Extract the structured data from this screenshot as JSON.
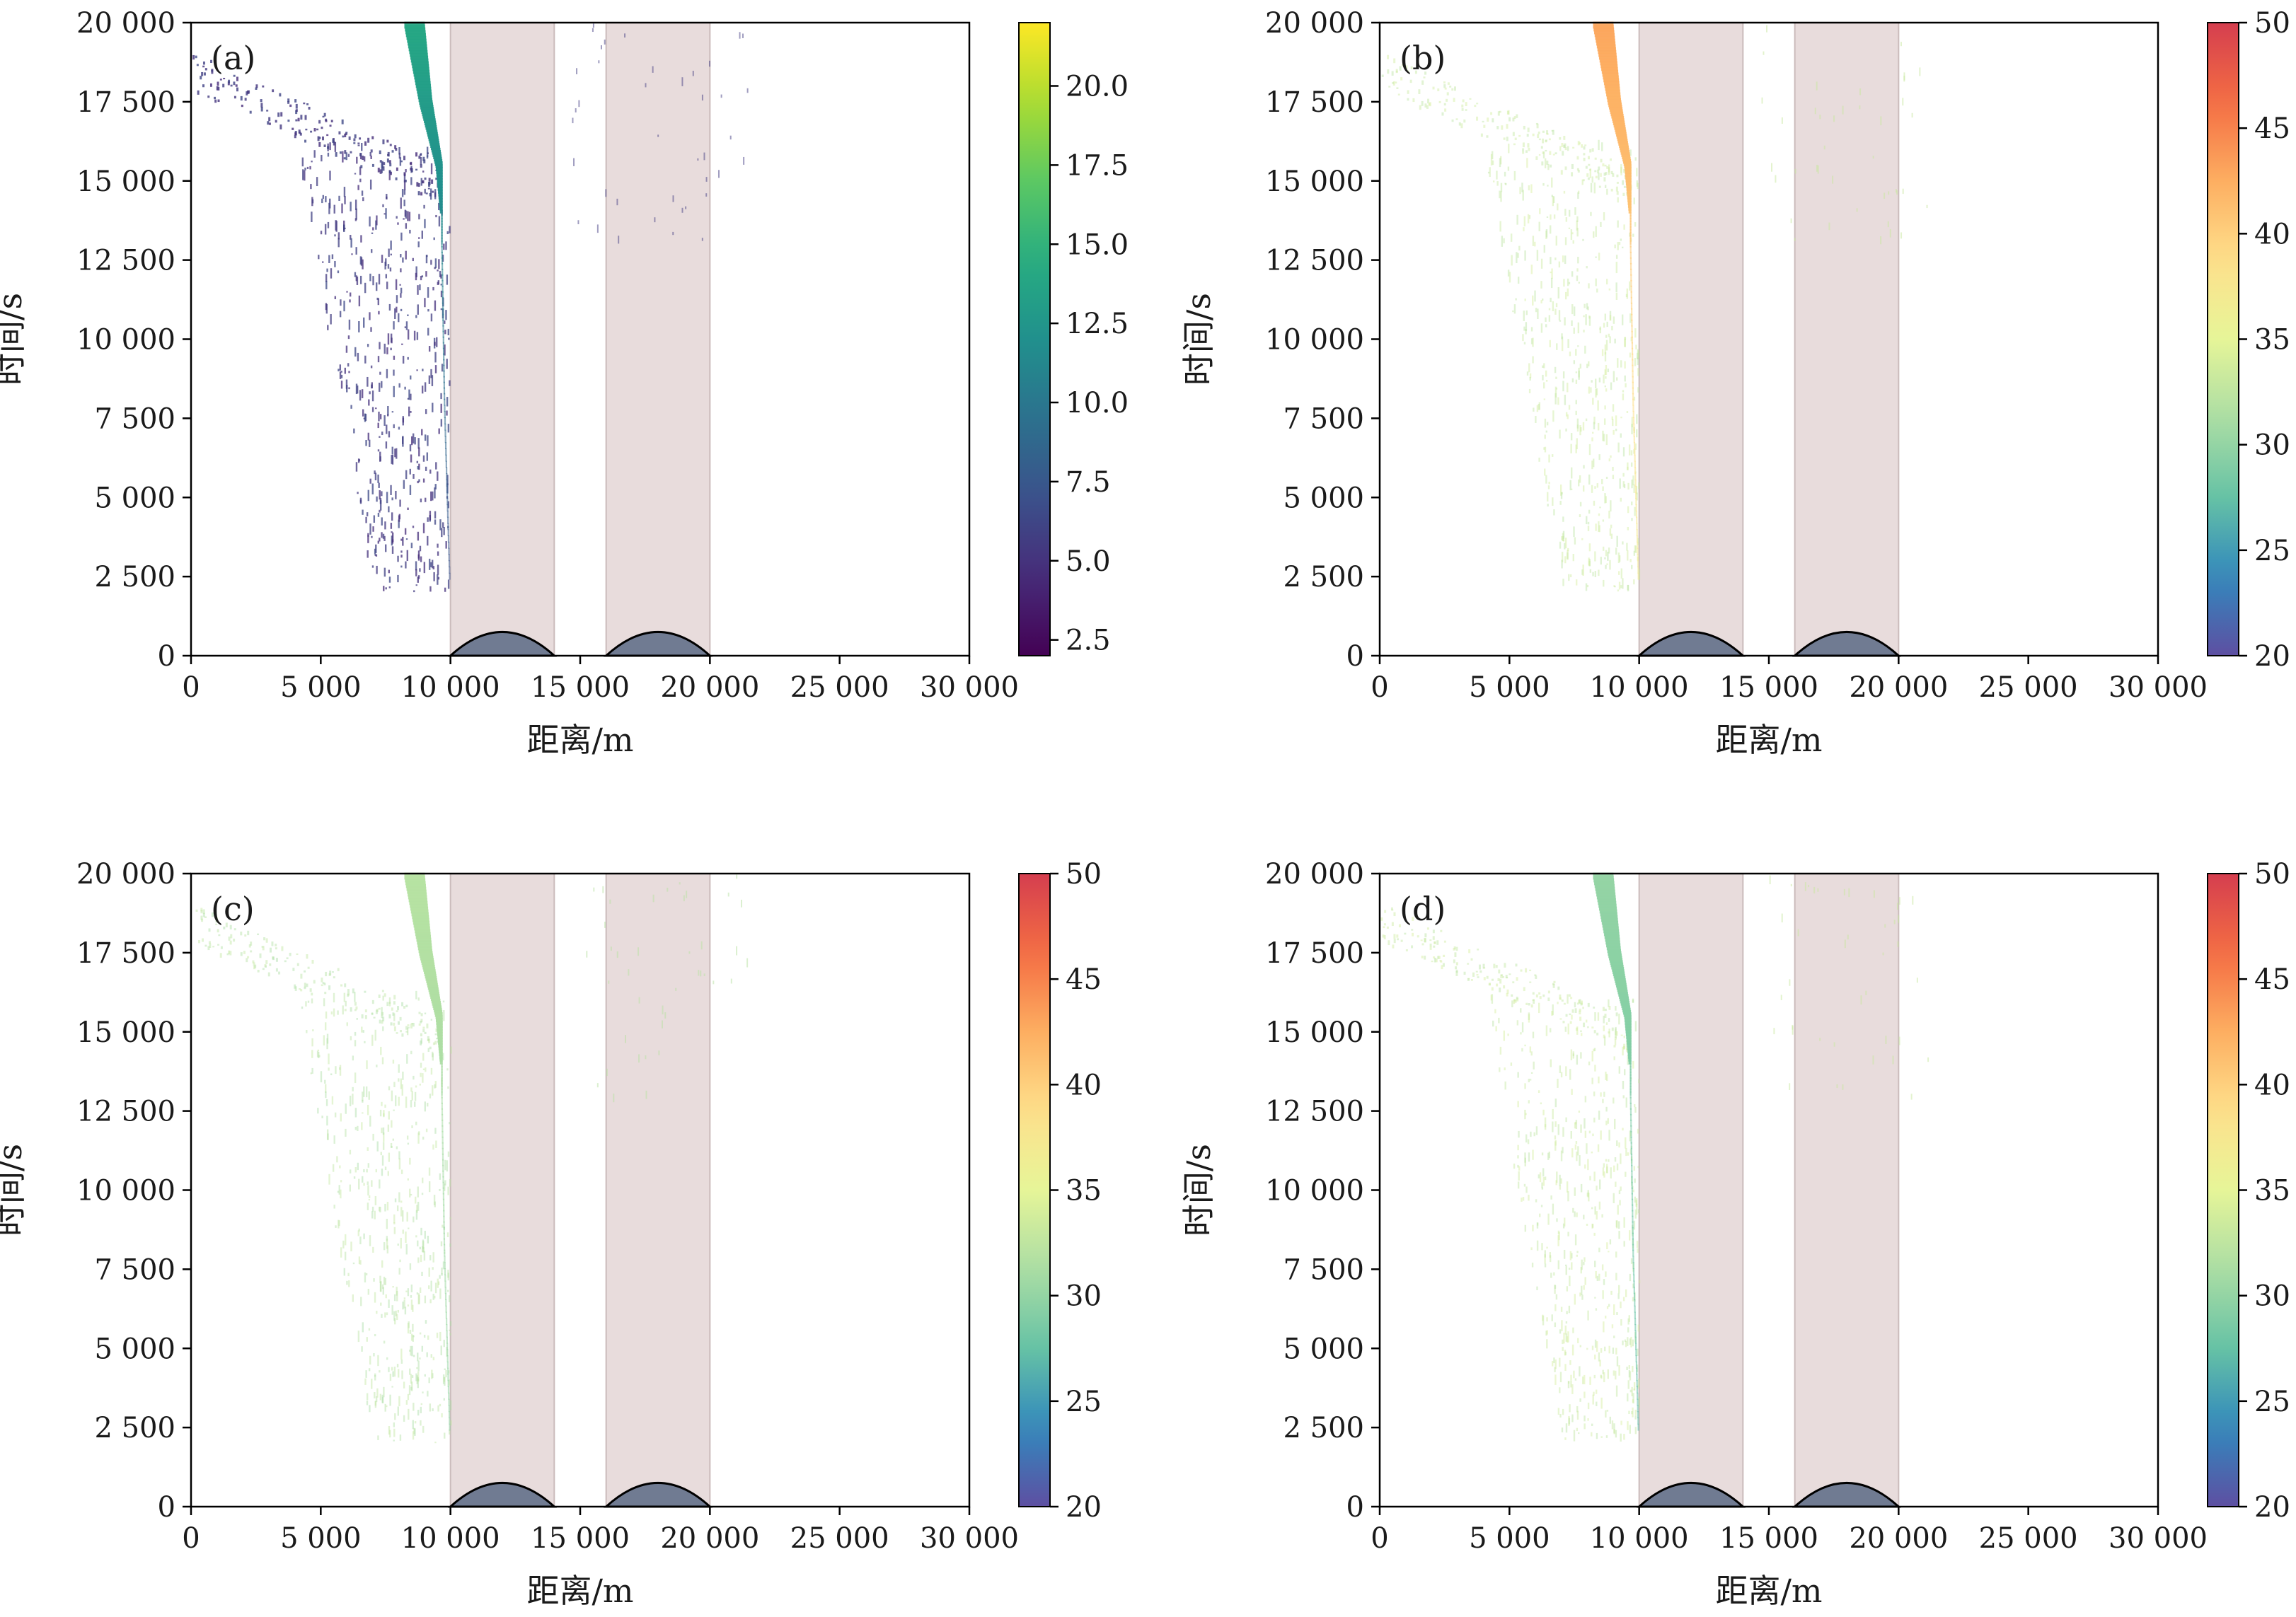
{
  "chart_data": [
    {
      "type": "scatter",
      "panel_label": "(a)",
      "xlabel": "距离/m",
      "ylabel": "时间/s",
      "xlim": [
        0,
        30000
      ],
      "ylim": [
        0,
        20000
      ],
      "xticks": [
        0,
        5000,
        10000,
        15000,
        20000,
        25000,
        30000
      ],
      "xtick_labels": [
        "0",
        "5 000",
        "10 000",
        "15 000",
        "20 000",
        "25 000",
        "30 000"
      ],
      "yticks": [
        0,
        2500,
        5000,
        7500,
        10000,
        12500,
        15000,
        17500,
        20000
      ],
      "ytick_labels": [
        "0",
        "2 500",
        "5 000",
        "7 500",
        "10 000",
        "12 500",
        "15 000",
        "17 500",
        "20 000"
      ],
      "colorbar": {
        "colormap": "viridis",
        "range": [
          2,
          22
        ],
        "ticks": [
          2.5,
          5.0,
          7.5,
          10.0,
          12.5,
          15.0,
          17.5,
          20.0
        ],
        "tick_labels": [
          "2.5",
          "5.0",
          "7.5",
          "10.0",
          "12.5",
          "15.0",
          "17.5",
          "20.0"
        ]
      },
      "shaded_regions": [
        [
          10000,
          14000
        ],
        [
          16000,
          20000
        ]
      ],
      "hills": [
        {
          "start": 10000,
          "end": 14000,
          "peak_time": 750
        },
        {
          "start": 16000,
          "end": 20000,
          "peak_time": 750
        }
      ],
      "trajectory_band": {
        "x_left": [
          4000,
          7000
        ],
        "x_right": [
          10000,
          10000
        ],
        "t_range": [
          2000,
          16000
        ],
        "color_value": 5.5,
        "front_points": [
          [
            10000,
            2500
          ],
          [
            9800,
            8000
          ],
          [
            9700,
            13000
          ],
          [
            9700,
            15500
          ],
          [
            9300,
            17500
          ],
          [
            9000,
            20000
          ]
        ],
        "front_color_range": [
          7,
          14
        ]
      },
      "grid": false
    },
    {
      "type": "scatter",
      "panel_label": "(b)",
      "xlabel": "距离/m",
      "ylabel": "时间/s",
      "xlim": [
        0,
        30000
      ],
      "ylim": [
        0,
        20000
      ],
      "xticks": [
        0,
        5000,
        10000,
        15000,
        20000,
        25000,
        30000
      ],
      "xtick_labels": [
        "0",
        "5 000",
        "10 000",
        "15 000",
        "20 000",
        "25 000",
        "30 000"
      ],
      "yticks": [
        0,
        2500,
        5000,
        7500,
        10000,
        12500,
        15000,
        17500,
        20000
      ],
      "ytick_labels": [
        "0",
        "2 500",
        "5 000",
        "7 500",
        "10 000",
        "12 500",
        "15 000",
        "17 500",
        "20 000"
      ],
      "colorbar": {
        "colormap": "spectral",
        "range": [
          20,
          50
        ],
        "ticks": [
          20,
          25,
          30,
          35,
          40,
          45,
          50
        ],
        "tick_labels": [
          "20",
          "25",
          "30",
          "35",
          "40",
          "45",
          "50"
        ]
      },
      "shaded_regions": [
        [
          10000,
          14000
        ],
        [
          16000,
          20000
        ]
      ],
      "hills": [
        {
          "start": 10000,
          "end": 14000,
          "peak_time": 750
        },
        {
          "start": 16000,
          "end": 20000,
          "peak_time": 750
        }
      ],
      "trajectory_band": {
        "x_left": [
          4000,
          7000
        ],
        "x_right": [
          10000,
          10000
        ],
        "t_range": [
          2000,
          16000
        ],
        "color_value": 33,
        "front_points": [
          [
            10000,
            2500
          ],
          [
            9800,
            8000
          ],
          [
            9700,
            13000
          ],
          [
            9700,
            15500
          ],
          [
            9300,
            17500
          ],
          [
            9000,
            20000
          ]
        ],
        "front_color_range": [
          37,
          43
        ]
      },
      "grid": false
    },
    {
      "type": "scatter",
      "panel_label": "(c)",
      "xlabel": "距离/m",
      "ylabel": "时间/s",
      "xlim": [
        0,
        30000
      ],
      "ylim": [
        0,
        20000
      ],
      "xticks": [
        0,
        5000,
        10000,
        15000,
        20000,
        25000,
        30000
      ],
      "xtick_labels": [
        "0",
        "5 000",
        "10 000",
        "15 000",
        "20 000",
        "25 000",
        "30 000"
      ],
      "yticks": [
        0,
        2500,
        5000,
        7500,
        10000,
        12500,
        15000,
        17500,
        20000
      ],
      "ytick_labels": [
        "0",
        "2 500",
        "5 000",
        "7 500",
        "10 000",
        "12 500",
        "15 000",
        "17 500",
        "20 000"
      ],
      "colorbar": {
        "colormap": "spectral",
        "range": [
          20,
          50
        ],
        "ticks": [
          20,
          25,
          30,
          35,
          40,
          45,
          50
        ],
        "tick_labels": [
          "20",
          "25",
          "30",
          "35",
          "40",
          "45",
          "50"
        ]
      },
      "shaded_regions": [
        [
          10000,
          14000
        ],
        [
          16000,
          20000
        ]
      ],
      "hills": [
        {
          "start": 10000,
          "end": 14000,
          "peak_time": 750
        },
        {
          "start": 16000,
          "end": 20000,
          "peak_time": 750
        }
      ],
      "trajectory_band": {
        "x_left": [
          4000,
          7000
        ],
        "x_right": [
          10000,
          10000
        ],
        "t_range": [
          2000,
          16000
        ],
        "color_value": 32,
        "front_points": [
          [
            10000,
            2500
          ],
          [
            9800,
            8000
          ],
          [
            9700,
            13000
          ],
          [
            9700,
            15500
          ],
          [
            9300,
            17500
          ],
          [
            9000,
            20000
          ]
        ],
        "front_color_range": [
          30,
          32
        ]
      },
      "grid": false
    },
    {
      "type": "scatter",
      "panel_label": "(d)",
      "xlabel": "距离/m",
      "ylabel": "时间/s",
      "xlim": [
        0,
        30000
      ],
      "ylim": [
        0,
        20000
      ],
      "xticks": [
        0,
        5000,
        10000,
        15000,
        20000,
        25000,
        30000
      ],
      "xtick_labels": [
        "0",
        "5 000",
        "10 000",
        "15 000",
        "20 000",
        "25 000",
        "30 000"
      ],
      "yticks": [
        0,
        2500,
        5000,
        7500,
        10000,
        12500,
        15000,
        17500,
        20000
      ],
      "ytick_labels": [
        "0",
        "2 500",
        "5 000",
        "7 500",
        "10 000",
        "12 500",
        "15 000",
        "17 500",
        "20 000"
      ],
      "colorbar": {
        "colormap": "spectral",
        "range": [
          20,
          50
        ],
        "ticks": [
          20,
          25,
          30,
          35,
          40,
          45,
          50
        ],
        "tick_labels": [
          "20",
          "25",
          "30",
          "35",
          "40",
          "45",
          "50"
        ]
      },
      "shaded_regions": [
        [
          10000,
          14000
        ],
        [
          16000,
          20000
        ]
      ],
      "hills": [
        {
          "start": 10000,
          "end": 14000,
          "peak_time": 750
        },
        {
          "start": 16000,
          "end": 20000,
          "peak_time": 750
        }
      ],
      "trajectory_band": {
        "x_left": [
          4000,
          7000
        ],
        "x_right": [
          10000,
          10000
        ],
        "t_range": [
          2000,
          16000
        ],
        "color_value": 33,
        "front_points": [
          [
            10000,
            2500
          ],
          [
            9800,
            8000
          ],
          [
            9700,
            13000
          ],
          [
            9700,
            15500
          ],
          [
            9300,
            17500
          ],
          [
            9000,
            20000
          ]
        ],
        "front_color_range": [
          27,
          30
        ]
      },
      "grid": false
    }
  ],
  "colors": {
    "shaded_region": "#e8dcdc",
    "shaded_region_edge": "#cbbcbc",
    "hill_fill": "#707b92",
    "hill_edge": "#000000",
    "axis": "#000000"
  }
}
